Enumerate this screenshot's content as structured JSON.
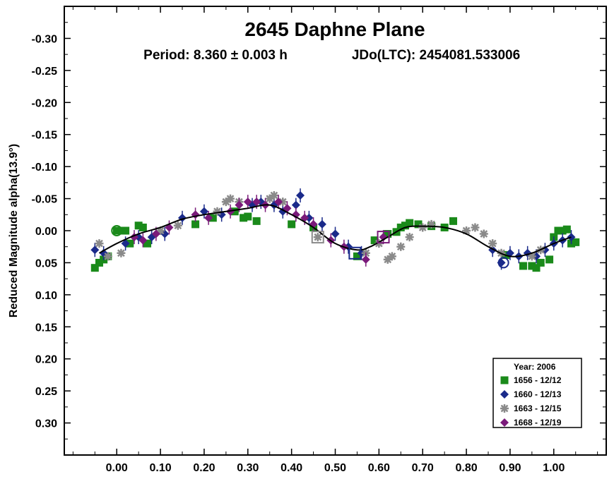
{
  "chart_data": {
    "type": "scatter",
    "title": "2645 Daphne Plane",
    "subtitle_period": "Period: 8.360 ± 0.003 h",
    "subtitle_epoch": "JDo(LTC): 2454081.533006",
    "xlabel": "",
    "ylabel": "Reduced Magnitude alpha(13.9°)",
    "xlim": [
      -0.12,
      1.12
    ],
    "ylim": [
      -0.35,
      0.35
    ],
    "y_inverted": true,
    "x_ticks": [
      "0.00",
      "0.10",
      "0.20",
      "0.30",
      "0.40",
      "0.50",
      "0.60",
      "0.70",
      "0.80",
      "0.90",
      "1.00"
    ],
    "y_ticks": [
      "-0.30",
      "-0.25",
      "-0.20",
      "-0.15",
      "-0.10",
      "-0.05",
      "0.00",
      "0.05",
      "0.10",
      "0.15",
      "0.20",
      "0.25",
      "0.30"
    ],
    "legend_title": "Year: 2006",
    "legend_position": "bottom-right",
    "fit_curve": {
      "x": [
        -0.04,
        0.0,
        0.05,
        0.1,
        0.15,
        0.2,
        0.25,
        0.3,
        0.35,
        0.4,
        0.45,
        0.5,
        0.55,
        0.58,
        0.62,
        0.66,
        0.7,
        0.75,
        0.8,
        0.85,
        0.9,
        0.95,
        1.0,
        1.04
      ],
      "y": [
        0.035,
        0.02,
        0.005,
        -0.005,
        -0.018,
        -0.025,
        -0.03,
        -0.035,
        -0.04,
        -0.025,
        -0.005,
        0.02,
        0.03,
        0.025,
        0.01,
        -0.005,
        -0.007,
        -0.005,
        0.005,
        0.025,
        0.04,
        0.035,
        0.02,
        0.01
      ]
    },
    "series": [
      {
        "name": "1656 - 12/12",
        "color": "#1a8a1a",
        "marker": "square",
        "x": [
          -0.05,
          -0.04,
          -0.03,
          -0.02,
          0.0,
          0.01,
          0.02,
          0.03,
          0.05,
          0.06,
          0.07,
          0.18,
          0.22,
          0.27,
          0.29,
          0.3,
          0.32,
          0.4,
          0.45,
          0.55,
          0.59,
          0.62,
          0.64,
          0.65,
          0.66,
          0.67,
          0.69,
          0.72,
          0.75,
          0.77,
          0.89,
          0.93,
          0.95,
          0.96,
          0.97,
          0.99,
          1.0,
          1.01,
          1.02,
          1.03,
          1.04,
          1.05
        ],
        "y": [
          0.058,
          0.05,
          0.045,
          0.04,
          0.0,
          0.0,
          0.0,
          0.02,
          -0.008,
          -0.005,
          0.02,
          -0.01,
          -0.02,
          -0.03,
          -0.02,
          -0.022,
          -0.015,
          -0.01,
          -0.005,
          0.04,
          0.015,
          0.005,
          0.002,
          -0.005,
          -0.008,
          -0.012,
          -0.01,
          -0.007,
          -0.005,
          -0.015,
          0.038,
          0.055,
          0.055,
          0.058,
          0.05,
          0.045,
          0.01,
          0.0,
          0.0,
          -0.002,
          0.02,
          0.018
        ]
      },
      {
        "name": "1660 - 12/13",
        "color": "#1a2a8a",
        "marker": "diamond",
        "x": [
          -0.05,
          -0.03,
          0.02,
          0.05,
          0.08,
          0.11,
          0.15,
          0.2,
          0.24,
          0.31,
          0.33,
          0.36,
          0.38,
          0.41,
          0.42,
          0.44,
          0.47,
          0.5,
          0.53,
          0.56,
          0.86,
          0.88,
          0.9,
          0.92,
          0.94,
          0.96,
          0.98,
          1.0,
          1.02,
          1.04
        ],
        "y": [
          0.03,
          0.035,
          0.02,
          0.01,
          0.01,
          0.005,
          -0.02,
          -0.03,
          -0.025,
          -0.04,
          -0.045,
          -0.04,
          -0.03,
          -0.04,
          -0.055,
          -0.02,
          -0.01,
          0.005,
          0.025,
          0.035,
          0.03,
          0.05,
          0.035,
          0.04,
          0.035,
          0.04,
          0.03,
          0.02,
          0.015,
          0.01
        ]
      },
      {
        "name": "1663 - 12/15",
        "color": "#8a8a8a",
        "marker": "asterisk",
        "x": [
          -0.04,
          -0.02,
          0.01,
          0.1,
          0.14,
          0.23,
          0.25,
          0.26,
          0.28,
          0.35,
          0.36,
          0.38,
          0.46,
          0.57,
          0.6,
          0.62,
          0.63,
          0.65,
          0.67,
          0.7,
          0.72,
          0.8,
          0.82,
          0.84,
          0.86,
          0.88,
          0.95,
          0.97
        ],
        "y": [
          0.02,
          0.04,
          0.035,
          0.0,
          -0.008,
          -0.03,
          -0.045,
          -0.05,
          -0.045,
          -0.05,
          -0.055,
          -0.045,
          0.01,
          0.035,
          0.02,
          0.045,
          0.04,
          0.025,
          0.01,
          -0.005,
          -0.01,
          0.0,
          -0.005,
          0.005,
          0.02,
          0.035,
          0.04,
          0.03
        ]
      },
      {
        "name": "1668 - 12/19",
        "color": "#7a1a7a",
        "marker": "diamond",
        "x": [
          0.04,
          0.06,
          0.09,
          0.12,
          0.18,
          0.21,
          0.26,
          0.28,
          0.3,
          0.32,
          0.34,
          0.37,
          0.39,
          0.41,
          0.43,
          0.45,
          0.49,
          0.52,
          0.57,
          0.61
        ],
        "y": [
          0.01,
          0.015,
          0.005,
          -0.005,
          -0.025,
          -0.02,
          -0.03,
          -0.04,
          -0.045,
          -0.045,
          -0.04,
          -0.045,
          -0.035,
          -0.025,
          -0.02,
          -0.01,
          0.015,
          0.025,
          0.045,
          0.01
        ]
      }
    ],
    "reference_markers": [
      {
        "x": 0.0,
        "y": 0.0,
        "color": "#1a8a1a",
        "shape": "circle"
      },
      {
        "x": 0.885,
        "y": 0.05,
        "color": "#1a2a8a",
        "shape": "circle"
      },
      {
        "x": 0.46,
        "y": 0.01,
        "color": "#8a8a8a",
        "shape": "square"
      },
      {
        "x": 0.545,
        "y": 0.035,
        "color": "#1a2a8a",
        "shape": "square"
      },
      {
        "x": 0.61,
        "y": 0.01,
        "color": "#7a1a7a",
        "shape": "square"
      }
    ]
  }
}
